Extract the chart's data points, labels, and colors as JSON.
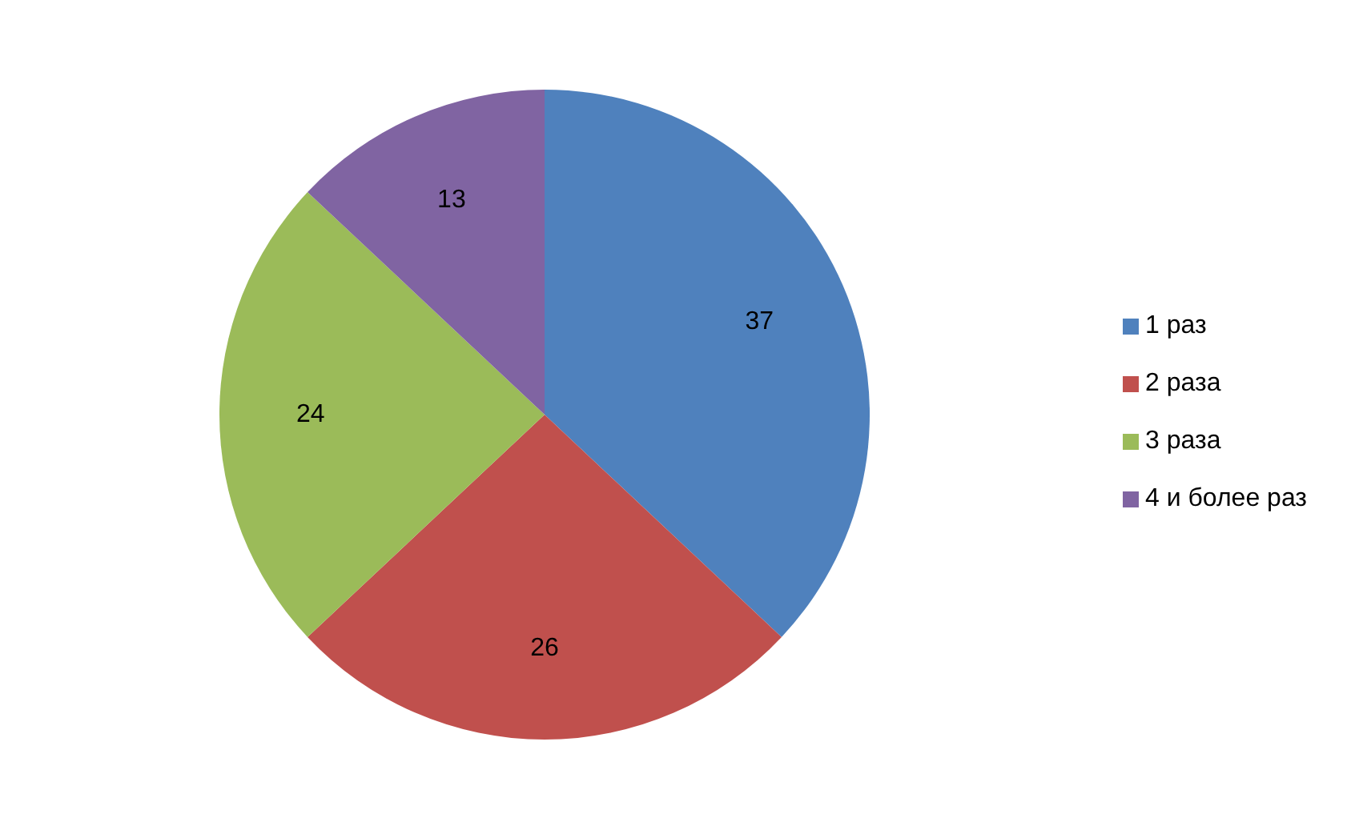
{
  "chart_data": {
    "type": "pie",
    "categories": [
      "1 раз",
      "2 раза",
      "3 раза",
      "4 и более раз"
    ],
    "values": [
      37,
      26,
      24,
      13
    ],
    "colors": [
      "#4f81bd",
      "#c0504d",
      "#9bbb59",
      "#8064a2"
    ],
    "data_labels": true,
    "legend": "right"
  }
}
